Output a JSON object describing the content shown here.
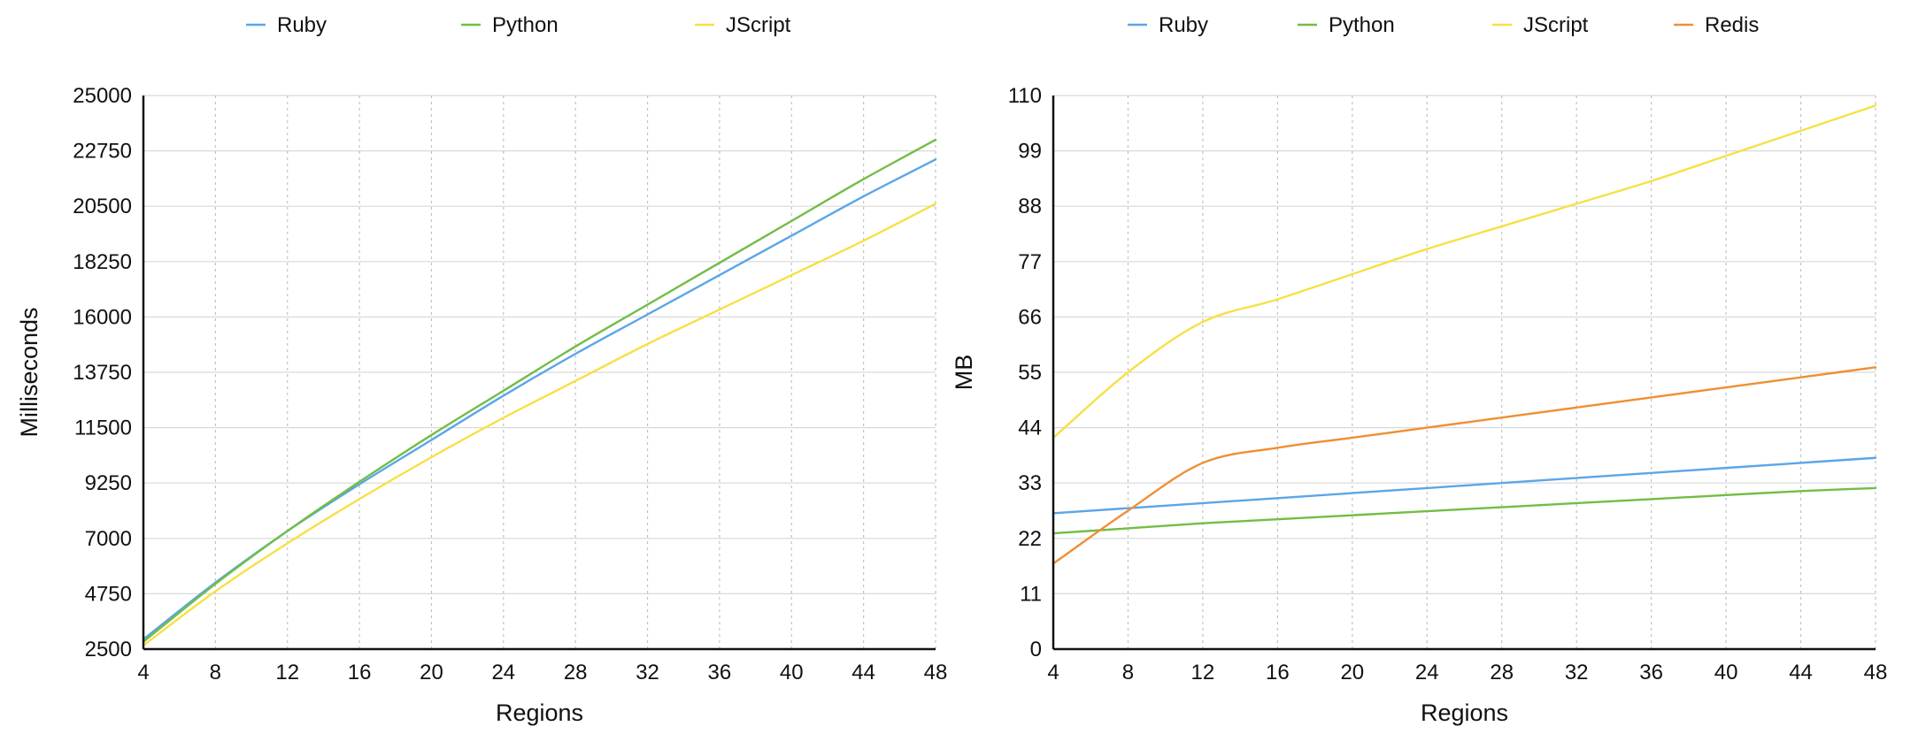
{
  "chart_data": [
    {
      "type": "line",
      "title": "",
      "xlabel": "Regions",
      "ylabel": "Milliseconds",
      "x": [
        4,
        8,
        12,
        16,
        20,
        24,
        28,
        32,
        36,
        40,
        44,
        48
      ],
      "xlim": [
        4,
        48
      ],
      "ylim": [
        2500,
        25000
      ],
      "yticks": [
        2500,
        4750,
        7000,
        9250,
        11500,
        13750,
        16000,
        18250,
        20500,
        22750,
        25000
      ],
      "grid": {
        "x": true,
        "y": true
      },
      "legend": "top",
      "series": [
        {
          "name": "Ruby",
          "color": "#5aa6e8",
          "values": [
            2900,
            5200,
            7300,
            9200,
            11000,
            12800,
            14500,
            16100,
            17700,
            19300,
            20900,
            22400
          ]
        },
        {
          "name": "Python",
          "color": "#72bd45",
          "values": [
            2800,
            5150,
            7300,
            9300,
            11200,
            13000,
            14800,
            16500,
            18200,
            19900,
            21600,
            23200
          ]
        },
        {
          "name": "JScript",
          "color": "#f7e046",
          "values": [
            2650,
            4850,
            6800,
            8600,
            10300,
            11900,
            13400,
            14900,
            16300,
            17700,
            19100,
            20600
          ]
        }
      ]
    },
    {
      "type": "line",
      "title": "",
      "xlabel": "Regions",
      "ylabel": "MB",
      "x": [
        4,
        8,
        12,
        16,
        20,
        24,
        28,
        32,
        36,
        40,
        44,
        48
      ],
      "xlim": [
        4,
        48
      ],
      "ylim": [
        0,
        110
      ],
      "yticks": [
        0,
        11,
        22,
        33,
        44,
        55,
        66,
        77,
        88,
        99,
        110
      ],
      "grid": {
        "x": true,
        "y": true
      },
      "legend": "top",
      "series": [
        {
          "name": "Ruby",
          "color": "#5aa6e8",
          "values": [
            27,
            28,
            29,
            30,
            31,
            32,
            33,
            34,
            35,
            36,
            37,
            38
          ]
        },
        {
          "name": "Python",
          "color": "#72bd45",
          "values": [
            23,
            24,
            25,
            25.8,
            26.6,
            27.4,
            28.2,
            29,
            29.8,
            30.6,
            31.4,
            32
          ]
        },
        {
          "name": "JScript",
          "color": "#f7e046",
          "values": [
            42,
            55,
            65,
            69.5,
            74.5,
            79.5,
            84,
            88.5,
            93,
            98,
            103,
            108
          ]
        },
        {
          "name": "Redis",
          "color": "#ef8f33",
          "values": [
            17,
            27.5,
            37,
            40,
            42,
            44,
            46,
            48,
            50,
            52,
            54,
            56
          ]
        }
      ]
    }
  ]
}
